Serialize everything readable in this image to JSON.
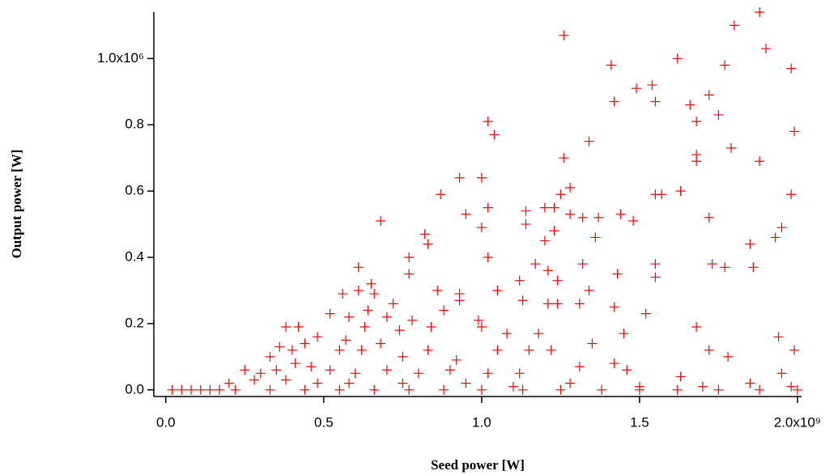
{
  "chart_data": {
    "type": "scatter",
    "x_label": "Seed power [W]",
    "y_label": "Output power [W]",
    "color": "#ff0000",
    "marker": "plus",
    "xlim": [
      -38000000.0,
      2013000000.0
    ],
    "xticks": [
      {
        "value": 0,
        "label": "0.0"
      },
      {
        "value": 500000000.0,
        "label": "0.5"
      },
      {
        "value": 1000000000.0,
        "label": "1.0"
      },
      {
        "value": 1500000000.0,
        "label": "1.5"
      },
      {
        "value": 2000000000.0,
        "label": "2.0x10⁹"
      }
    ],
    "ylim": [
      -20000.0,
      1140000.0
    ],
    "yticks": [
      {
        "value": 0,
        "label": "0.0"
      },
      {
        "value": 200000.0,
        "label": "0.2"
      },
      {
        "value": 400000.0,
        "label": "0.4"
      },
      {
        "value": 600000.0,
        "label": "0.6"
      },
      {
        "value": 800000.0,
        "label": "0.8"
      },
      {
        "value": 1000000.0,
        "label": "1.0x10⁶"
      }
    ],
    "x": [
      1880000000.0,
      1800000000.0,
      1260000000.0,
      1900000000.0,
      1620000000.0,
      1410000000.0,
      1770000000.0,
      1980000000.0,
      1540000000.0,
      1490000000.0,
      1720000000.0,
      1420000000.0,
      1550000000.0,
      1660000000.0,
      1750000000.0,
      1680000000.0,
      1020000000.0,
      1040000000.0,
      1340000000.0,
      1990000000.0,
      1790000000.0,
      1680000000.0,
      1680000000.0,
      1260000000.0,
      1880000000.0,
      930000000.0,
      1000000000.0,
      1280000000.0,
      1630000000.0,
      870000000.0,
      1250000000.0,
      1550000000.0,
      1570000000.0,
      1980000000.0,
      1020000000.0,
      1200000000.0,
      1230000000.0,
      1140000000.0,
      950000000.0,
      1280000000.0,
      1320000000.0,
      1440000000.0,
      1720000000.0,
      1370000000.0,
      680000000.0,
      1480000000.0,
      1140000000.0,
      1000000000.0,
      1950000000.0,
      1230000000.0,
      820000000.0,
      830000000.0,
      1200000000.0,
      1850000000.0,
      1930000000.0,
      1360000000.0,
      770000000.0,
      1020000000.0,
      1170000000.0,
      1320000000.0,
      1550000000.0,
      1730000000.0,
      1770000000.0,
      1860000000.0,
      610000000.0,
      770000000.0,
      1210000000.0,
      1430000000.0,
      1550000000.0,
      650000000.0,
      1120000000.0,
      1240000000.0,
      560000000.0,
      610000000.0,
      660000000.0,
      860000000.0,
      930000000.0,
      1050000000.0,
      1340000000.0,
      1130000000.0,
      1210000000.0,
      720000000.0,
      930000000.0,
      1240000000.0,
      1310000000.0,
      1420000000.0,
      520000000.0,
      580000000.0,
      640000000.0,
      700000000.0,
      780000000.0,
      880000000.0,
      990000000.0,
      1520000000.0,
      380000000.0,
      420000000.0,
      480000000.0,
      570000000.0,
      630000000.0,
      740000000.0,
      840000000.0,
      1000000000.0,
      1080000000.0,
      1180000000.0,
      1450000000.0,
      1680000000.0,
      1940000000.0,
      330000000.0,
      360000000.0,
      400000000.0,
      440000000.0,
      550000000.0,
      620000000.0,
      680000000.0,
      750000000.0,
      830000000.0,
      920000000.0,
      1050000000.0,
      1150000000.0,
      1220000000.0,
      1350000000.0,
      1420000000.0,
      1720000000.0,
      1780000000.0,
      1990000000.0,
      250000000.0,
      300000000.0,
      350000000.0,
      410000000.0,
      460000000.0,
      520000000.0,
      600000000.0,
      700000000.0,
      800000000.0,
      900000000.0,
      1020000000.0,
      1120000000.0,
      1310000000.0,
      1460000000.0,
      1630000000.0,
      1950000000.0,
      200000000.0,
      280000000.0,
      380000000.0,
      480000000.0,
      580000000.0,
      750000000.0,
      950000000.0,
      1100000000.0,
      1280000000.0,
      1500000000.0,
      1700000000.0,
      1850000000.0,
      1980000000.0,
      20000000.0,
      50000000.0,
      80000000.0,
      110000000.0,
      140000000.0,
      170000000.0,
      220000000.0,
      330000000.0,
      440000000.0,
      550000000.0,
      660000000.0,
      770000000.0,
      880000000.0,
      1000000000.0,
      1130000000.0,
      1250000000.0,
      1380000000.0,
      1500000000.0,
      1620000000.0,
      1750000000.0,
      1880000000.0,
      2000000000.0
    ],
    "values": [
      1140000.0,
      1100000.0,
      1070000.0,
      1030000.0,
      1000000.0,
      980000.0,
      980000.0,
      970000.0,
      920000.0,
      910000.0,
      890000.0,
      870000.0,
      870000.0,
      860000.0,
      830000.0,
      810000.0,
      810000.0,
      770000.0,
      750000.0,
      780000.0,
      730000.0,
      710000.0,
      690000.0,
      700000.0,
      690000.0,
      640000.0,
      640000.0,
      610000.0,
      600000.0,
      590000.0,
      590000.0,
      590000.0,
      590000.0,
      590000.0,
      550000.0,
      550000.0,
      550000.0,
      540000.0,
      530000.0,
      530000.0,
      520000.0,
      530000.0,
      520000.0,
      520000.0,
      510000.0,
      510000.0,
      500000.0,
      490000.0,
      490000.0,
      480000.0,
      470000.0,
      440000.0,
      450000.0,
      440000.0,
      460000.0,
      460000.0,
      400000.0,
      400000.0,
      380000.0,
      380000.0,
      380000.0,
      380000.0,
      370000.0,
      370000.0,
      370000.0,
      350000.0,
      360000.0,
      350000.0,
      340000.0,
      320000.0,
      330000.0,
      330000.0,
      290000.0,
      300000.0,
      290000.0,
      300000.0,
      290000.0,
      300000.0,
      300000.0,
      270000.0,
      260000.0,
      260000.0,
      270000.0,
      260000.0,
      260000.0,
      250000.0,
      230000.0,
      220000.0,
      240000.0,
      220000.0,
      210000.0,
      240000.0,
      210000.0,
      230000.0,
      190000.0,
      190000.0,
      160000.0,
      150000.0,
      190000.0,
      180000.0,
      190000.0,
      190000.0,
      170000.0,
      170000.0,
      170000.0,
      190000.0,
      160000.0,
      100000.0,
      130000.0,
      120000.0,
      140000.0,
      120000.0,
      120000.0,
      140000.0,
      100000.0,
      120000.0,
      90000.0,
      120000.0,
      120000.0,
      120000.0,
      140000.0,
      80000.0,
      120000.0,
      100000.0,
      120000.0,
      60000.0,
      50000.0,
      60000.0,
      80000.0,
      70000.0,
      60000.0,
      50000.0,
      60000.0,
      50000.0,
      60000.0,
      50000.0,
      50000.0,
      70000.0,
      60000.0,
      40000.0,
      50000.0,
      20000.0,
      30000.0,
      30000.0,
      20000.0,
      20000.0,
      20000.0,
      20000.0,
      10000.0,
      20000.0,
      10000.0,
      10000.0,
      20000.0,
      10000.0,
      0,
      0,
      0,
      0,
      0,
      0,
      0,
      0,
      0,
      0,
      0,
      0,
      0,
      0,
      0,
      0,
      0,
      0,
      0,
      0,
      0,
      0
    ]
  }
}
